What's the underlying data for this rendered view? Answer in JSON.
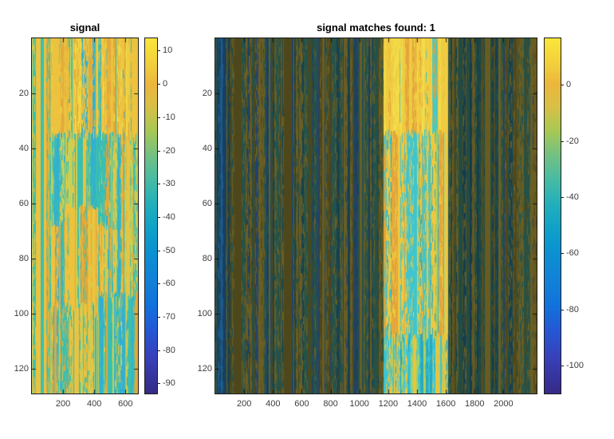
{
  "window": {
    "background": "#ffffff",
    "axis_box_color": "#1c1c1c",
    "tick_label_color": "#3c3c3c",
    "title_color": "#000000"
  },
  "colorbar_gradient": [
    [
      0,
      "#f9e63b"
    ],
    [
      4,
      "#f6da3a"
    ],
    [
      9,
      "#f0c83c"
    ],
    [
      13,
      "#ecb63c"
    ],
    [
      19,
      "#d9bf46"
    ],
    [
      26,
      "#a8c853"
    ],
    [
      33,
      "#72c083"
    ],
    [
      40,
      "#46bba4"
    ],
    [
      47,
      "#21aebc"
    ],
    [
      54,
      "#0fa0c8"
    ],
    [
      60,
      "#0b91d1"
    ],
    [
      68,
      "#1281d7"
    ],
    [
      75,
      "#1173dc"
    ],
    [
      82,
      "#2458d6"
    ],
    [
      90,
      "#3840b8"
    ],
    [
      100,
      "#352a87"
    ]
  ],
  "chart_data": [
    {
      "type": "heatmap",
      "title": "signal",
      "xlabel": "",
      "ylabel": "",
      "x_ticks": [
        200,
        400,
        600
      ],
      "y_ticks": [
        20,
        40,
        60,
        80,
        100,
        120
      ],
      "x_range": [
        1,
        680
      ],
      "y_range": [
        1,
        129
      ],
      "y_direction": "reverse",
      "colormap": "parula",
      "grid": false,
      "colorbar": {
        "ticks": [
          10,
          0,
          -10,
          -20,
          -30,
          -40,
          -50,
          -60,
          -70,
          -80,
          -90
        ],
        "clim_top": 13.7,
        "clim_bottom": -93
      },
      "texture_regions": [
        {
          "x": [
            0,
            680
          ],
          "y": [
            0,
            129
          ],
          "palette": [
            [
              "#ecc23e",
              0.36
            ],
            [
              "#e2a83a",
              0.14
            ],
            [
              "#c6d156",
              0.16
            ],
            [
              "#3abfb0",
              0.24
            ],
            [
              "#31aed4",
              0.1
            ]
          ]
        },
        {
          "x": [
            120,
            680
          ],
          "y": [
            0,
            34
          ],
          "palette": [
            [
              "#ecc23e",
              0.52
            ],
            [
              "#e2a83a",
              0.22
            ],
            [
              "#f2d945",
              0.1
            ],
            [
              "#3abfb0",
              0.12
            ],
            [
              "#31aed4",
              0.04
            ]
          ]
        },
        {
          "x": [
            0,
            120
          ],
          "y": [
            0,
            129
          ],
          "palette": [
            [
              "#3abfb0",
              0.38
            ],
            [
              "#31aed4",
              0.14
            ],
            [
              "#ecc23e",
              0.26
            ],
            [
              "#c6d156",
              0.16
            ],
            [
              "#e2a83a",
              0.06
            ]
          ]
        },
        {
          "x": [
            130,
            520
          ],
          "y": [
            34,
            66
          ],
          "palette": [
            [
              "#3abfb0",
              0.42
            ],
            [
              "#31aed4",
              0.16
            ],
            [
              "#ecc23e",
              0.2
            ],
            [
              "#c6d156",
              0.16
            ],
            [
              "#e2a83a",
              0.06
            ]
          ]
        },
        {
          "x": [
            200,
            430
          ],
          "y": [
            60,
            100
          ],
          "palette": [
            [
              "#ecc23e",
              0.46
            ],
            [
              "#e2a83a",
              0.18
            ],
            [
              "#c6d156",
              0.14
            ],
            [
              "#3abfb0",
              0.18
            ],
            [
              "#31aed4",
              0.04
            ]
          ]
        },
        {
          "x": [
            430,
            680
          ],
          "y": [
            92,
            129
          ],
          "palette": [
            [
              "#3abfb0",
              0.44
            ],
            [
              "#31aed4",
              0.2
            ],
            [
              "#ecc23e",
              0.18
            ],
            [
              "#c6d156",
              0.12
            ],
            [
              "#e2a83a",
              0.06
            ]
          ]
        },
        {
          "x": [
            120,
            400
          ],
          "y": [
            96,
            129
          ],
          "palette": [
            [
              "#ecc23e",
              0.38
            ],
            [
              "#3abfb0",
              0.28
            ],
            [
              "#c6d156",
              0.16
            ],
            [
              "#e2a83a",
              0.1
            ],
            [
              "#31aed4",
              0.08
            ]
          ]
        }
      ]
    },
    {
      "type": "heatmap",
      "title": "signal matches found: 1",
      "xlabel": "",
      "ylabel": "",
      "x_ticks": [
        200,
        400,
        600,
        800,
        1000,
        1200,
        1400,
        1600,
        1800,
        2000
      ],
      "y_ticks": [
        20,
        40,
        60,
        80,
        100,
        120
      ],
      "x_range": [
        1,
        2230
      ],
      "y_range": [
        1,
        129
      ],
      "y_direction": "reverse",
      "colormap": "parula",
      "grid": false,
      "colorbar": {
        "ticks": [
          0,
          -20,
          -40,
          -60,
          -80,
          -100
        ],
        "clim_top": 16.6,
        "clim_bottom": -110
      },
      "annotations": {
        "matches_found": 1,
        "match_band_x": [
          1165,
          1615
        ]
      },
      "texture_regions": [
        {
          "x": [
            0,
            2230
          ],
          "y": [
            0,
            129
          ],
          "palette": [
            [
              "#6a5e22",
              0.32
            ],
            [
              "#4e471c",
              0.22
            ],
            [
              "#23524a",
              0.26
            ],
            [
              "#174050",
              0.12
            ],
            [
              "#22426b",
              0.08
            ]
          ]
        },
        {
          "x": [
            8,
            75
          ],
          "y": [
            0,
            129
          ],
          "palette": [
            [
              "#1d5b8e",
              0.5
            ],
            [
              "#174060",
              0.3
            ],
            [
              "#1f4f4a",
              0.2
            ]
          ]
        },
        {
          "x": [
            1620,
            1950
          ],
          "y": [
            0,
            129
          ],
          "palette": [
            [
              "#1f4c45",
              0.36
            ],
            [
              "#554d1e",
              0.26
            ],
            [
              "#685c21",
              0.22
            ],
            [
              "#163a4c",
              0.16
            ]
          ]
        },
        {
          "x": [
            1165,
            1615
          ],
          "y": [
            0,
            33
          ],
          "palette": [
            [
              "#f0ca40",
              0.5
            ],
            [
              "#f2dc49",
              0.2
            ],
            [
              "#e2a43b",
              0.2
            ],
            [
              "#4cc7c2",
              0.1
            ]
          ]
        },
        {
          "x": [
            1165,
            1615
          ],
          "y": [
            33,
            107
          ],
          "palette": [
            [
              "#3ec5cf",
              0.32
            ],
            [
              "#edc83f",
              0.32
            ],
            [
              "#a6d164",
              0.12
            ],
            [
              "#e2a43b",
              0.1
            ],
            [
              "#2aa9ba",
              0.14
            ]
          ]
        },
        {
          "x": [
            1165,
            1615
          ],
          "y": [
            107,
            129
          ],
          "palette": [
            [
              "#38c5d8",
              0.44
            ],
            [
              "#2aa9ba",
              0.22
            ],
            [
              "#e9c43e",
              0.22
            ],
            [
              "#a6d164",
              0.12
            ]
          ]
        }
      ]
    }
  ]
}
